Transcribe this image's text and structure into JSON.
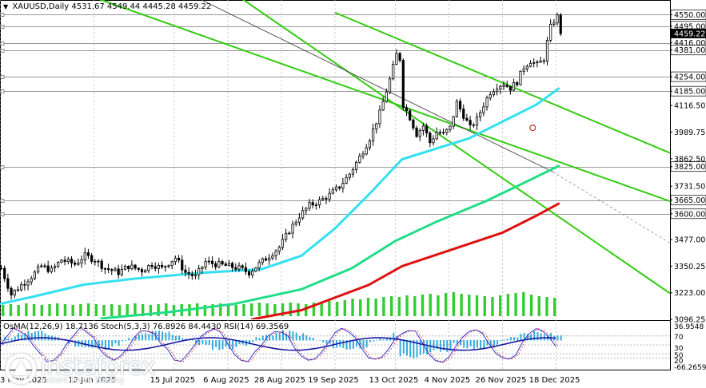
{
  "header": {
    "symbol": "XAUUSD,Daily",
    "ohlc": "4531.67 4549.44 4445.28 4459.22"
  },
  "indicators": {
    "text": "OsMA(12,26,9) 18.7136  Stoch(5,3,3) 76.8926 84.4430  RSI(14) 69.3569"
  },
  "logo": {
    "name": "instaforex",
    "tagline": "Instant Forex Trading"
  },
  "colors": {
    "background": "#ffffff",
    "candles": "#000000",
    "volume": "#33cc33",
    "ma_fast": "#33e0f0",
    "ma_mid": "#22dd88",
    "ma_slow": "#dd1111",
    "channel": "#33cc11",
    "grid": "#bbbbbb"
  },
  "chart_data": {
    "type": "candlestick",
    "symbol": "XAUUSD",
    "timeframe": "Daily",
    "last_price": 4459.22,
    "ylim": [
      3096.25,
      4620
    ],
    "price_axis_ticks": [
      4550.0,
      4495.0,
      4459.22,
      4416.0,
      4381.0,
      4254.0,
      4185.0,
      4116.5,
      3989.75,
      3862.5,
      3825.0,
      3731.5,
      3665.0,
      3600.0,
      3477.0,
      3350.25,
      3223.0,
      3096.25
    ],
    "horizontal_levels": [
      4550.0,
      4495.0,
      4416.0,
      4381.0,
      4254.0,
      4185.0,
      3825.0,
      3665.0,
      3600.0
    ],
    "x_tick_labels": [
      "3 May 2025",
      "12 Jun 2025",
      "15 Jul 2025",
      "6 Aug 2025",
      "28 Aug 2025",
      "19 Sep 2025",
      "13 Oct 2025",
      "4 Nov 2025",
      "26 Nov 2025",
      "18 Dec 2025"
    ],
    "x_ticks": [
      {
        "label": "3 May 2025",
        "x": 0
      },
      {
        "label": "12 Jun 2025",
        "x": 28
      },
      {
        "label": "15 Jul 2025",
        "x": 52
      },
      {
        "label": "6 Aug 2025",
        "x": 68
      },
      {
        "label": "28 Aug 2025",
        "x": 84
      },
      {
        "label": "19 Sep 2025",
        "x": 100
      },
      {
        "label": "13 Oct 2025",
        "x": 118
      },
      {
        "label": "4 Nov 2025",
        "x": 134
      },
      {
        "label": "26 Nov 2025",
        "x": 150
      },
      {
        "label": "18 Dec 2025",
        "x": 166
      }
    ],
    "close_path": [
      {
        "x": 0,
        "close": 3340
      },
      {
        "x": 3,
        "close": 3215
      },
      {
        "x": 6,
        "close": 3260
      },
      {
        "x": 9,
        "close": 3300
      },
      {
        "x": 12,
        "close": 3350
      },
      {
        "x": 15,
        "close": 3330
      },
      {
        "x": 18,
        "close": 3380
      },
      {
        "x": 22,
        "close": 3360
      },
      {
        "x": 25,
        "close": 3400
      },
      {
        "x": 28,
        "close": 3380
      },
      {
        "x": 31,
        "close": 3340
      },
      {
        "x": 35,
        "close": 3320
      },
      {
        "x": 38,
        "close": 3350
      },
      {
        "x": 42,
        "close": 3330
      },
      {
        "x": 45,
        "close": 3360
      },
      {
        "x": 48,
        "close": 3340
      },
      {
        "x": 52,
        "close": 3390
      },
      {
        "x": 55,
        "close": 3320
      },
      {
        "x": 58,
        "close": 3300
      },
      {
        "x": 61,
        "close": 3370
      },
      {
        "x": 64,
        "close": 3360
      },
      {
        "x": 68,
        "close": 3350
      },
      {
        "x": 71,
        "close": 3340
      },
      {
        "x": 74,
        "close": 3320
      },
      {
        "x": 77,
        "close": 3360
      },
      {
        "x": 80,
        "close": 3400
      },
      {
        "x": 83,
        "close": 3440
      },
      {
        "x": 86,
        "close": 3520
      },
      {
        "x": 89,
        "close": 3590
      },
      {
        "x": 92,
        "close": 3640
      },
      {
        "x": 95,
        "close": 3660
      },
      {
        "x": 98,
        "close": 3690
      },
      {
        "x": 101,
        "close": 3730
      },
      {
        "x": 104,
        "close": 3790
      },
      {
        "x": 107,
        "close": 3870
      },
      {
        "x": 110,
        "close": 3960
      },
      {
        "x": 113,
        "close": 4080
      },
      {
        "x": 116,
        "close": 4240
      },
      {
        "x": 118,
        "close": 4360
      },
      {
        "x": 119,
        "close": 4340
      },
      {
        "x": 120,
        "close": 4120
      },
      {
        "x": 122,
        "close": 4060
      },
      {
        "x": 124,
        "close": 3980
      },
      {
        "x": 126,
        "close": 4020
      },
      {
        "x": 128,
        "close": 3940
      },
      {
        "x": 130,
        "close": 3990
      },
      {
        "x": 132,
        "close": 3980
      },
      {
        "x": 134,
        "close": 4010
      },
      {
        "x": 136,
        "close": 4130
      },
      {
        "x": 138,
        "close": 4070
      },
      {
        "x": 140,
        "close": 4010
      },
      {
        "x": 142,
        "close": 4050
      },
      {
        "x": 144,
        "close": 4120
      },
      {
        "x": 146,
        "close": 4180
      },
      {
        "x": 148,
        "close": 4210
      },
      {
        "x": 150,
        "close": 4220
      },
      {
        "x": 152,
        "close": 4200
      },
      {
        "x": 154,
        "close": 4230
      },
      {
        "x": 156,
        "close": 4300
      },
      {
        "x": 158,
        "close": 4330
      },
      {
        "x": 160,
        "close": 4310
      },
      {
        "x": 162,
        "close": 4340
      },
      {
        "x": 163,
        "close": 4420
      },
      {
        "x": 164,
        "close": 4490
      },
      {
        "x": 165,
        "close": 4520
      },
      {
        "x": 166,
        "close": 4540
      },
      {
        "x": 167,
        "close": 4459.22
      }
    ],
    "moving_averages": [
      {
        "color": "#33e0f0",
        "points": [
          [
            0,
            3170
          ],
          [
            10,
            3205
          ],
          [
            25,
            3262
          ],
          [
            40,
            3290
          ],
          [
            60,
            3318
          ],
          [
            78,
            3335
          ],
          [
            90,
            3400
          ],
          [
            100,
            3530
          ],
          [
            110,
            3690
          ],
          [
            120,
            3860
          ],
          [
            130,
            3910
          ],
          [
            140,
            3960
          ],
          [
            150,
            4040
          ],
          [
            160,
            4120
          ],
          [
            167,
            4200
          ]
        ]
      },
      {
        "color": "#22dd88",
        "points": [
          [
            30,
            3100
          ],
          [
            50,
            3130
          ],
          [
            70,
            3170
          ],
          [
            90,
            3240
          ],
          [
            105,
            3340
          ],
          [
            118,
            3470
          ],
          [
            130,
            3560
          ],
          [
            145,
            3660
          ],
          [
            158,
            3760
          ],
          [
            167,
            3830
          ]
        ]
      },
      {
        "color": "#dd1111",
        "points": [
          [
            75,
            3096
          ],
          [
            90,
            3140
          ],
          [
            110,
            3260
          ],
          [
            120,
            3350
          ],
          [
            135,
            3430
          ],
          [
            150,
            3510
          ],
          [
            160,
            3590
          ],
          [
            167,
            3650
          ]
        ]
      }
    ],
    "channel_lines": [
      {
        "from": [
          25,
          4650
        ],
        "to": [
          200,
          3660
        ]
      },
      {
        "from": [
          70,
          4650
        ],
        "to": [
          200,
          3220
        ]
      },
      {
        "from": [
          100,
          4560
        ],
        "to": [
          200,
          3890
        ]
      }
    ],
    "trend_line": {
      "from": [
        50,
        4700
      ],
      "to": [
        165,
        3800
      ],
      "extension_to": [
        200,
        3460
      ]
    },
    "volume": [
      14,
      15,
      14,
      16,
      15,
      14,
      15,
      16,
      15,
      14,
      15,
      16,
      15,
      14,
      15,
      14,
      15,
      16,
      15,
      14,
      15,
      16,
      14,
      15,
      15,
      16,
      14,
      15,
      16,
      15,
      14,
      15,
      16,
      17,
      16,
      15,
      16,
      17,
      16,
      15,
      17,
      18,
      19,
      18,
      20,
      22,
      21,
      23,
      22,
      24,
      25,
      24,
      26,
      25,
      27,
      28,
      26,
      29,
      30,
      28,
      27,
      26,
      25,
      24,
      26,
      28,
      29,
      30,
      27,
      25,
      24,
      23
    ],
    "oscillator_panel": {
      "osma": 18.7136,
      "stoch_main": 76.8926,
      "stoch_signal": 84.443,
      "rsi": 69.3569,
      "right_labels": [
        "36.9548",
        "70",
        "30",
        "50",
        "20",
        "-66.2659"
      ],
      "levels": [
        70,
        50,
        30,
        20
      ]
    }
  }
}
